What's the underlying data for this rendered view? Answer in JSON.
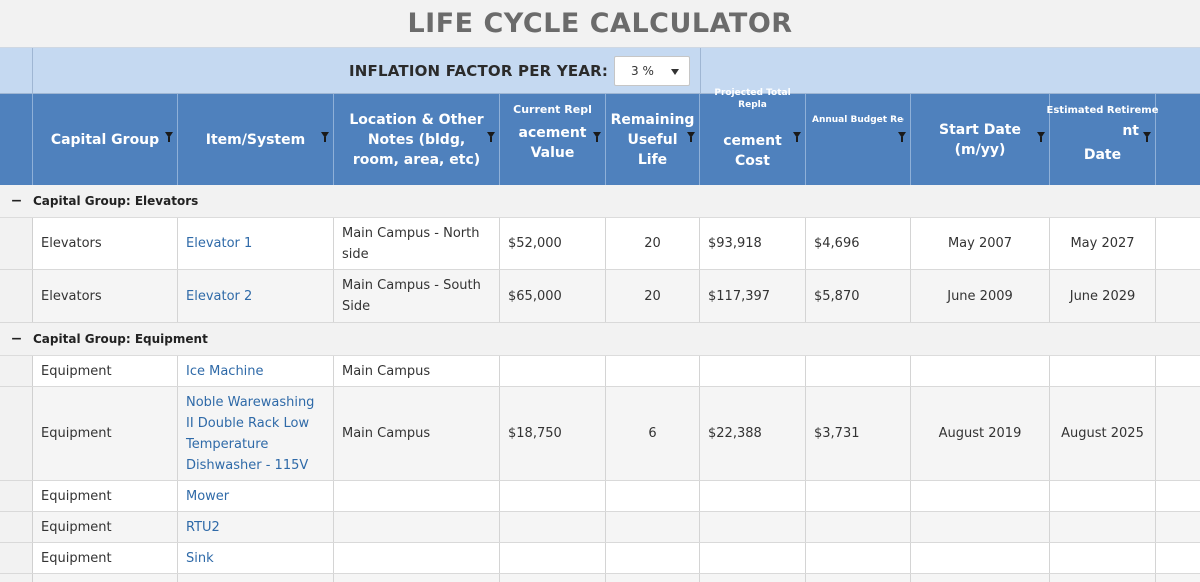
{
  "title": "LIFE CYCLE CALCULATOR",
  "inflation": {
    "label": "INFLATION FACTOR PER YEAR:",
    "value": "3 %"
  },
  "columns": {
    "capital_group": "Capital Group",
    "item_system": "Item/System",
    "location": "Location & Other Notes (bldg, room, area, etc)",
    "current_repl_top": "Current Repl",
    "current_repl_bottom": "acement Value",
    "remaining_life": "Remaining Useful Life",
    "projected_top": "Projected Total Repla",
    "projected_bottom": "cement Cost",
    "annual_budget": "Annual Budget Requireme",
    "start_date": "Start Date (m/yy)",
    "est_retire_top": "Estimated Retireme",
    "est_retire_mid": "nt",
    "est_retire_bottom": "Date"
  },
  "groups": [
    {
      "label": "Capital Group: Elevators",
      "rows": [
        {
          "group": "Elevators",
          "item": "Elevator 1",
          "location": "Main Campus - North side",
          "current": "$52,000",
          "life": "20",
          "projected": "$93,918",
          "annual": "$4,696",
          "start": "May 2007",
          "retire": "May 2027"
        },
        {
          "group": "Elevators",
          "item": "Elevator 2",
          "location": "Main Campus - South Side",
          "current": "$65,000",
          "life": "20",
          "projected": "$117,397",
          "annual": "$5,870",
          "start": "June 2009",
          "retire": "June 2029"
        }
      ]
    },
    {
      "label": "Capital Group: Equipment",
      "rows": [
        {
          "group": "Equipment",
          "item": "Ice Machine",
          "location": "Main Campus",
          "current": "",
          "life": "",
          "projected": "",
          "annual": "",
          "start": "",
          "retire": ""
        },
        {
          "group": "Equipment",
          "item": "Noble Warewashing II Double Rack Low Temperature Dishwasher - 115V",
          "location": "Main Campus",
          "current": "$18,750",
          "life": "6",
          "projected": "$22,388",
          "annual": "$3,731",
          "start": "August 2019",
          "retire": "August 2025"
        },
        {
          "group": "Equipment",
          "item": "Mower",
          "location": "",
          "current": "",
          "life": "",
          "projected": "",
          "annual": "",
          "start": "",
          "retire": ""
        },
        {
          "group": "Equipment",
          "item": "RTU2",
          "location": "",
          "current": "",
          "life": "",
          "projected": "",
          "annual": "",
          "start": "",
          "retire": ""
        },
        {
          "group": "Equipment",
          "item": "Sink",
          "location": "",
          "current": "",
          "life": "",
          "projected": "",
          "annual": "",
          "start": "",
          "retire": ""
        }
      ]
    }
  ],
  "colors": {
    "header_bg": "#4f81bd",
    "inflation_bg": "#c5d9f1",
    "link": "#2f6aa8"
  }
}
